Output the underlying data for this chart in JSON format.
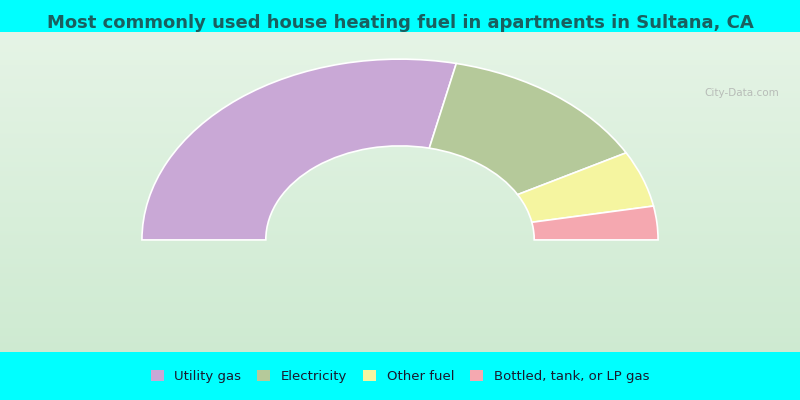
{
  "title": "Most commonly used house heating fuel in apartments in Sultana, CA",
  "title_fontsize": 13,
  "title_color": "#1a5f5f",
  "background_color": "#00ffff",
  "chart_bg_gradient_top": "#e8f5e8",
  "chart_bg_gradient_bottom": "#c8e8cc",
  "slices": [
    {
      "label": "Utility gas",
      "value": 57,
      "color": "#c9a8d6"
    },
    {
      "label": "Electricity",
      "value": 27,
      "color": "#b5c99a"
    },
    {
      "label": "Other fuel",
      "value": 10,
      "color": "#f5f5a0"
    },
    {
      "label": "Bottled, tank, or LP gas",
      "value": 6,
      "color": "#f5a8b0"
    }
  ],
  "legend_colors": [
    "#c9a8d6",
    "#b5c99a",
    "#f5f5a0",
    "#f5a8b0"
  ],
  "legend_labels": [
    "Utility gas",
    "Electricity",
    "Other fuel",
    "Bottled, tank, or LP gas"
  ],
  "watermark": "City-Data.com",
  "outer_r": 1.0,
  "inner_r": 0.52
}
